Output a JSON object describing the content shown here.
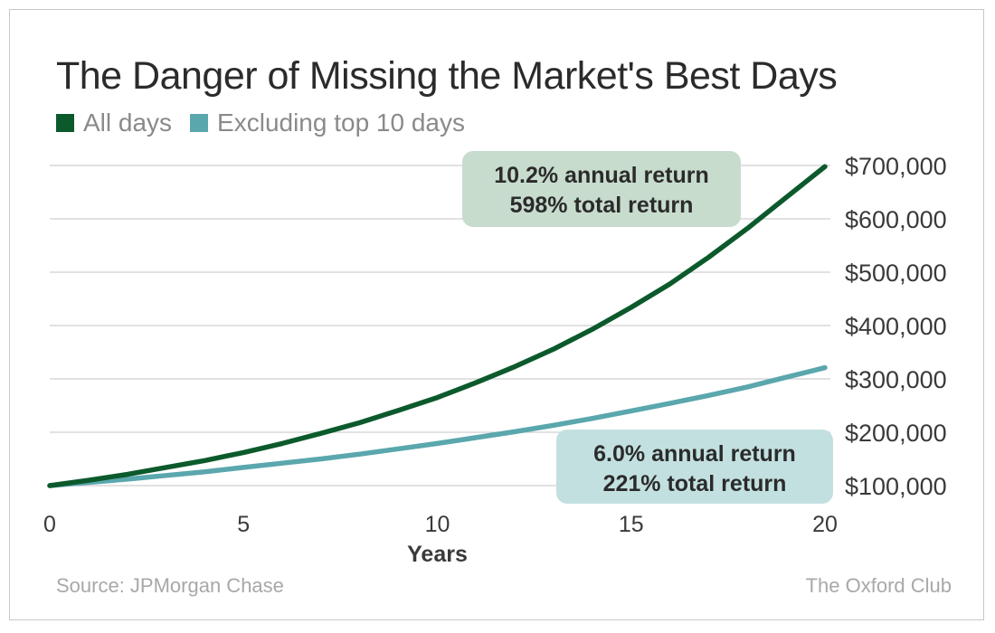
{
  "title": "The Danger of Missing the Market's Best Days",
  "legend": [
    {
      "label": "All days",
      "color": "#0c5a2c"
    },
    {
      "label": "Excluding top 10 days",
      "color": "#5aa7ad"
    }
  ],
  "source": "Source: JPMorgan Chase",
  "brand": "The Oxford Club",
  "chart_data": {
    "type": "line",
    "title": "The Danger of Missing the Market's Best Days",
    "xlabel": "Years",
    "ylabel": "",
    "xlim": [
      0,
      20
    ],
    "ylim": [
      100000,
      700000
    ],
    "x_ticks": [
      0,
      5,
      10,
      15,
      20
    ],
    "y_ticks": [
      100000,
      200000,
      300000,
      400000,
      500000,
      600000,
      700000
    ],
    "y_tick_labels": [
      "$100,000",
      "$200,000",
      "$300,000",
      "$400,000",
      "$500,000",
      "$600,000",
      "$700,000"
    ],
    "grid": "horizontal",
    "legend_position": "top-left",
    "series": [
      {
        "name": "All days",
        "color": "#0c5a2c",
        "x": [
          0,
          1,
          2,
          3,
          4,
          5,
          6,
          7,
          8,
          9,
          10,
          11,
          12,
          13,
          14,
          15,
          16,
          17,
          18,
          19,
          20
        ],
        "values": [
          100000,
          110000,
          121000,
          134000,
          147000,
          162000,
          179000,
          198000,
          218000,
          241000,
          265000,
          293000,
          323000,
          356000,
          393000,
          434000,
          478000,
          528000,
          582000,
          640000,
          698000
        ]
      },
      {
        "name": "Excluding top 10 days",
        "color": "#5aa7ad",
        "x": [
          0,
          1,
          2,
          3,
          4,
          5,
          6,
          7,
          8,
          9,
          10,
          11,
          12,
          13,
          14,
          15,
          16,
          17,
          18,
          19,
          20
        ],
        "values": [
          100000,
          106000,
          112000,
          119000,
          126000,
          134000,
          142000,
          150000,
          159000,
          169000,
          179000,
          190000,
          201000,
          213000,
          226000,
          240000,
          254000,
          269000,
          285000,
          303000,
          321000
        ]
      }
    ],
    "annotations": [
      {
        "lines": [
          "10.2% annual return",
          "598% total return"
        ],
        "bg": "#c8dcce",
        "series": "All days"
      },
      {
        "lines": [
          "6.0% annual return",
          "221% total return"
        ],
        "bg": "#c3e0e0",
        "series": "Excluding top 10 days"
      }
    ]
  }
}
